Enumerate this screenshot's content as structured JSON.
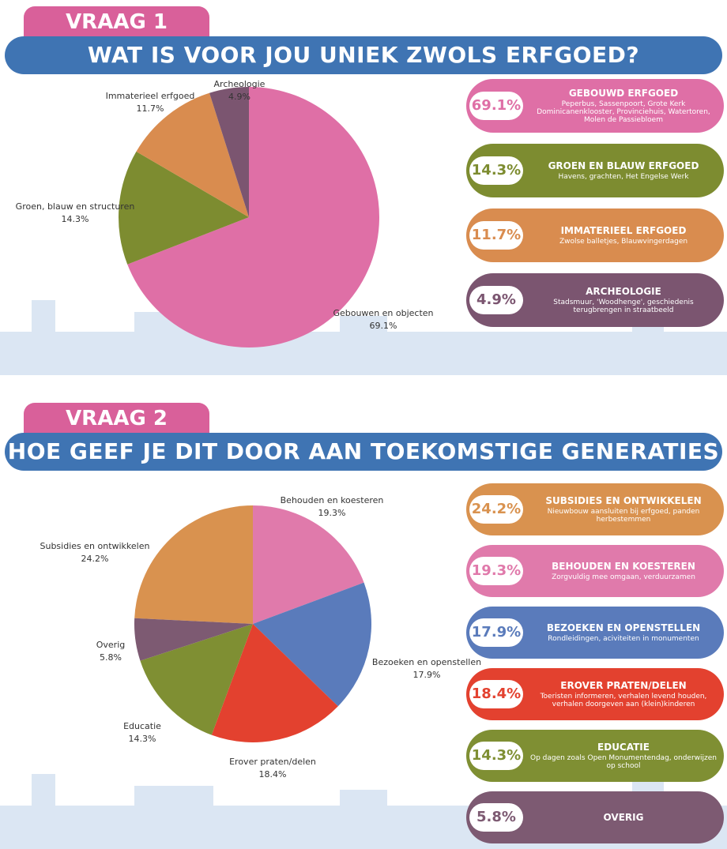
{
  "chart_data": [
    {
      "type": "pie",
      "tab": "VRAAG 1",
      "title": "WAT IS VOOR JOU UNIEK ZWOLS ERFGOED?",
      "categories": [
        "Gebouwen en objecten",
        "Groen, blauw en structuren",
        "Immaterieel erfgoed",
        "Archeologie"
      ],
      "values": [
        69.1,
        14.3,
        11.7,
        4.9
      ],
      "value_labels": [
        "69.1%",
        "14.3%",
        "11.7%",
        "4.9%"
      ],
      "colors": [
        "#df6fa6",
        "#7d8c30",
        "#d98c4f",
        "#7b5570"
      ],
      "cards": [
        {
          "title": "GEBOUWD ERFGOED",
          "text": "Peperbus, Sassenpoort, Grote Kerk Dominicanenklooster, Provinciehuis, Watertoren, Molen de Passiebloem"
        },
        {
          "title": "GROEN EN BLAUW ERFGOED",
          "text": "Havens, grachten, Het Engelse Werk"
        },
        {
          "title": "IMMATERIEEL ERFGOED",
          "text": "Zwolse balletjes, Blauwvingerdagen"
        },
        {
          "title": "ARCHEOLOGIE",
          "text": "Stadsmuur, 'Woodhenge', geschiedenis terugbrengen in straatbeeld"
        }
      ]
    },
    {
      "type": "pie",
      "tab": "VRAAG 2",
      "title": "HOE GEEF JE DIT DOOR AAN TOEKOMSTIGE GENERATIES",
      "categories": [
        "Subsidies en ontwikkelen",
        "Behouden en koesteren",
        "Bezoeken en openstellen",
        "Erover praten/delen",
        "Educatie",
        "Overig"
      ],
      "values": [
        24.2,
        19.3,
        17.9,
        18.4,
        14.3,
        5.8
      ],
      "value_labels": [
        "24.2%",
        "19.3%",
        "17.9%",
        "18.4%",
        "14.3%",
        "5.8%"
      ],
      "colors": [
        "#d9924f",
        "#e07aab",
        "#5a7bbb",
        "#e3412f",
        "#7f8f33",
        "#7d5a72"
      ],
      "cards": [
        {
          "title": "SUBSIDIES EN ONTWIKKELEN",
          "text": "Nieuwbouw aansluiten bij erfgoed, panden herbestemmen"
        },
        {
          "title": "BEHOUDEN EN KOESTEREN",
          "text": "Zorgvuldig mee omgaan, verduurzamen"
        },
        {
          "title": "BEZOEKEN EN OPENSTELLEN",
          "text": "Rondleidingen, aciviteiten in monumenten"
        },
        {
          "title": "EROVER PRATEN/DELEN",
          "text": "Toeristen informeren, verhalen levend houden, verhalen doorgeven aan (klein)kinderen"
        },
        {
          "title": "EDUCATIE",
          "text": "Op dagen zoals Open Monumentendag, onderwijzen op school"
        },
        {
          "title": "OVERIG",
          "text": ""
        }
      ]
    }
  ]
}
